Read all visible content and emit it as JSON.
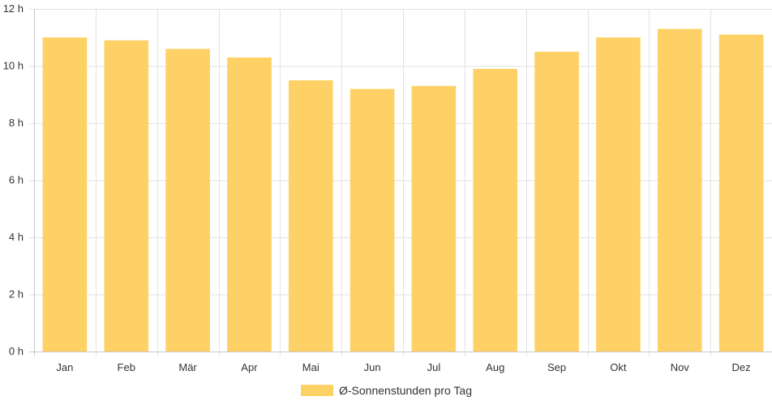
{
  "colors": {
    "bar": "#fed166",
    "grid": "#e2e2e2",
    "axis": "#c8c8c8",
    "text": "#333333"
  },
  "chart_data": {
    "type": "bar",
    "categories": [
      "Jan",
      "Feb",
      "Mär",
      "Apr",
      "Mai",
      "Jun",
      "Jul",
      "Aug",
      "Sep",
      "Okt",
      "Nov",
      "Dez"
    ],
    "series": [
      {
        "name": "Ø-Sonnenstunden pro Tag",
        "values": [
          11.0,
          10.9,
          10.6,
          10.3,
          9.5,
          9.2,
          9.3,
          9.9,
          10.5,
          11.0,
          11.3,
          11.1
        ]
      }
    ],
    "y_ticks": [
      0,
      2,
      4,
      6,
      8,
      10,
      12
    ],
    "y_tick_labels": [
      "0 h",
      "2 h",
      "4 h",
      "6 h",
      "8 h",
      "10 h",
      "12 h"
    ],
    "ylim": [
      0,
      12
    ],
    "grid": true,
    "legend_position": "bottom"
  }
}
